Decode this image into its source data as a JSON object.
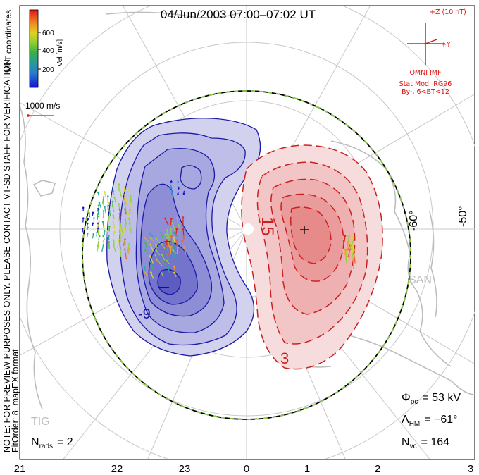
{
  "chart_data": {
    "type": "polar-convection-map",
    "title": "04/Jun/2003 07:00–07:02 UT",
    "coordinates_label": "MLT coordinates",
    "velocity_scale": {
      "label": "Vel [m/s]",
      "ticks": [
        200,
        400,
        600
      ],
      "colors": [
        "#1a1acc",
        "#2f8fd8",
        "#2aa89a",
        "#3dbb55",
        "#8cd43a",
        "#d8d828",
        "#f0a020",
        "#ee6020",
        "#e02020"
      ]
    },
    "reference_vector_label": "1000 m/s",
    "imf": {
      "axis_z_label": "+Z (10 nT)",
      "axis_y_label": "+Y",
      "source_label": "OMNI IMF",
      "model_label": "Stat Mod: RG96",
      "condition_label": "By-, 6<BT<12"
    },
    "preview_note": "NOTE: FOR PREVIEW PURPOSES ONLY. PLEASE CONTACT VT-SD STAFF FOR VERIFICATION.",
    "fit_note": "FitOrder: 8, mapEX format",
    "latitude_labels": [
      "-60°",
      "-50°"
    ],
    "station_labels": [
      "SAN",
      "TIG"
    ],
    "contour_labels": [
      "-9",
      "15",
      "3"
    ],
    "mlt_labels": [
      "21",
      "22",
      "23",
      "0",
      "1",
      "2",
      "3"
    ],
    "stats": {
      "phi_pc_symbol": "Φ",
      "phi_pc_sub": "pc",
      "phi_pc_value": "= 53 kV",
      "lambda_hm_symbol": "Λ",
      "lambda_hm_sub": "HM",
      "lambda_hm_value": "= −61°",
      "n_vc_symbol": "N",
      "n_vc_sub": "vc",
      "n_vc_value": "= 164",
      "n_rads_symbol": "N",
      "n_rads_sub": "rads",
      "n_rads_value": "= 2"
    },
    "potential_pattern": {
      "negative_cell": {
        "color": "#1a1aa8",
        "fill": "#4040c8"
      },
      "positive_cell": {
        "color": "#cc2020",
        "fill": "#e03030"
      }
    },
    "colors": {
      "boundary_dash_a": "#000000",
      "boundary_dash_b": "#88cc44",
      "grid": "#c8c8c8",
      "coast": "#bcbcbc",
      "imf_red": "#e01010"
    }
  }
}
